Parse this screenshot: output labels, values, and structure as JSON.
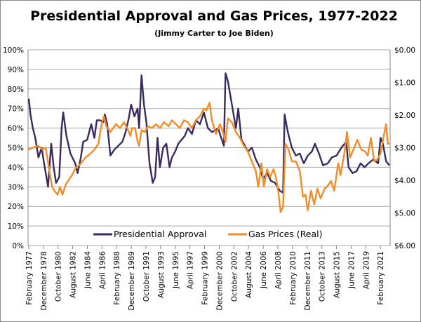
{
  "chart_data": {
    "type": "line",
    "title": "Presidential Approval and Gas Prices, 1977-2022",
    "subtitle": "(Jimmy Carter to Joe Biden)",
    "xlabel": "",
    "ylabel": "",
    "x_tick_labels": [
      "February 1977",
      "December 1978",
      "October 1980",
      "August 1982",
      "June 1984",
      "April 1986",
      "February 1988",
      "December 1989",
      "October 1991",
      "August 1993",
      "June 1995",
      "April 1997",
      "February 1999",
      "December 2000",
      "October 2002",
      "August 2004",
      "June 2006",
      "April 2008",
      "February 2010",
      "December 2011",
      "October 2013",
      "August 2015",
      "June 2017",
      "April 2019",
      "February 2021"
    ],
    "x_tick_years": [
      1977.08,
      1978.92,
      1980.75,
      1982.58,
      1984.42,
      1986.25,
      1988.08,
      1989.92,
      1991.75,
      1993.58,
      1995.42,
      1997.25,
      1999.08,
      2000.92,
      2002.75,
      2004.58,
      2006.42,
      2008.25,
      2010.08,
      2011.92,
      2013.75,
      2015.58,
      2017.42,
      2019.25,
      2021.08
    ],
    "xlim": [
      1977.0,
      2022.3
    ],
    "y_left": {
      "ticks": [
        "0%",
        "10%",
        "20%",
        "30%",
        "40%",
        "50%",
        "60%",
        "70%",
        "80%",
        "90%",
        "100%"
      ],
      "range": [
        0,
        100
      ]
    },
    "y_right": {
      "ticks": [
        "$0.00",
        "$1.00",
        "$2.00",
        "$3.00",
        "$4.00",
        "$5.00",
        "$6.00"
      ],
      "range": [
        0,
        6
      ],
      "inverted": true
    },
    "grid": true,
    "legend_position": "bottom-inside",
    "series": [
      {
        "name": "Presidential Approval",
        "axis": "left",
        "color": "#3b2a5e",
        "points": [
          [
            1977.1,
            75
          ],
          [
            1977.3,
            67
          ],
          [
            1977.6,
            60
          ],
          [
            1977.9,
            55
          ],
          [
            1978.3,
            45
          ],
          [
            1978.7,
            50
          ],
          [
            1979.0,
            42
          ],
          [
            1979.5,
            30
          ],
          [
            1979.9,
            52
          ],
          [
            1980.2,
            40
          ],
          [
            1980.5,
            32
          ],
          [
            1980.9,
            35
          ],
          [
            1981.2,
            60
          ],
          [
            1981.4,
            68
          ],
          [
            1981.8,
            56
          ],
          [
            1982.3,
            47
          ],
          [
            1982.9,
            42
          ],
          [
            1983.2,
            37
          ],
          [
            1983.6,
            45
          ],
          [
            1983.9,
            53
          ],
          [
            1984.4,
            54
          ],
          [
            1984.9,
            62
          ],
          [
            1985.3,
            55
          ],
          [
            1985.6,
            64
          ],
          [
            1986.0,
            64
          ],
          [
            1986.4,
            63
          ],
          [
            1986.6,
            67
          ],
          [
            1986.9,
            62
          ],
          [
            1987.3,
            46
          ],
          [
            1987.8,
            49
          ],
          [
            1988.3,
            51
          ],
          [
            1988.8,
            53
          ],
          [
            1989.2,
            58
          ],
          [
            1989.6,
            65
          ],
          [
            1989.9,
            72
          ],
          [
            1990.3,
            66
          ],
          [
            1990.7,
            70
          ],
          [
            1990.9,
            60
          ],
          [
            1991.2,
            87
          ],
          [
            1991.5,
            72
          ],
          [
            1991.8,
            63
          ],
          [
            1992.2,
            42
          ],
          [
            1992.6,
            32
          ],
          [
            1992.9,
            35
          ],
          [
            1993.2,
            55
          ],
          [
            1993.5,
            40
          ],
          [
            1993.9,
            50
          ],
          [
            1994.3,
            52
          ],
          [
            1994.7,
            40
          ],
          [
            1995.0,
            45
          ],
          [
            1995.4,
            48
          ],
          [
            1995.8,
            52
          ],
          [
            1996.2,
            54
          ],
          [
            1996.6,
            56
          ],
          [
            1997.0,
            60
          ],
          [
            1997.5,
            57
          ],
          [
            1998.0,
            64
          ],
          [
            1998.5,
            62
          ],
          [
            1999.0,
            68
          ],
          [
            1999.5,
            60
          ],
          [
            2000.0,
            58
          ],
          [
            2000.5,
            59
          ],
          [
            2000.8,
            60
          ],
          [
            2001.0,
            57
          ],
          [
            2001.5,
            51
          ],
          [
            2001.7,
            88
          ],
          [
            2002.0,
            84
          ],
          [
            2002.5,
            72
          ],
          [
            2003.0,
            60
          ],
          [
            2003.3,
            70
          ],
          [
            2003.7,
            54
          ],
          [
            2004.0,
            52
          ],
          [
            2004.5,
            48
          ],
          [
            2005.0,
            50
          ],
          [
            2005.5,
            44
          ],
          [
            2006.0,
            40
          ],
          [
            2006.4,
            34
          ],
          [
            2006.9,
            37
          ],
          [
            2007.4,
            33
          ],
          [
            2007.9,
            32
          ],
          [
            2008.5,
            28
          ],
          [
            2008.9,
            27
          ],
          [
            2009.1,
            67
          ],
          [
            2009.5,
            58
          ],
          [
            2010.0,
            50
          ],
          [
            2010.5,
            46
          ],
          [
            2011.0,
            47
          ],
          [
            2011.5,
            42
          ],
          [
            2012.0,
            46
          ],
          [
            2012.5,
            48
          ],
          [
            2012.9,
            52
          ],
          [
            2013.4,
            47
          ],
          [
            2013.9,
            41
          ],
          [
            2014.5,
            42
          ],
          [
            2015.0,
            45
          ],
          [
            2015.6,
            46
          ],
          [
            2016.2,
            50
          ],
          [
            2016.8,
            53
          ],
          [
            2017.1,
            40
          ],
          [
            2017.6,
            37
          ],
          [
            2018.1,
            38
          ],
          [
            2018.6,
            42
          ],
          [
            2019.1,
            40
          ],
          [
            2019.6,
            42
          ],
          [
            2020.2,
            44
          ],
          [
            2020.8,
            42
          ],
          [
            2021.1,
            55
          ],
          [
            2021.4,
            52
          ],
          [
            2021.8,
            43
          ],
          [
            2022.2,
            41
          ]
        ]
      },
      {
        "name": "Gas Prices (Real)",
        "axis": "right",
        "color": "#f28c28",
        "points": [
          [
            1977.0,
            3.06
          ],
          [
            1978.3,
            2.94
          ],
          [
            1978.8,
            3.06
          ],
          [
            1979.2,
            3.0
          ],
          [
            1979.6,
            3.6
          ],
          [
            1980.0,
            4.2
          ],
          [
            1980.3,
            4.32
          ],
          [
            1980.7,
            4.44
          ],
          [
            1981.0,
            4.2
          ],
          [
            1981.3,
            4.44
          ],
          [
            1981.7,
            4.14
          ],
          [
            1982.0,
            4.02
          ],
          [
            1982.5,
            3.84
          ],
          [
            1983.0,
            3.6
          ],
          [
            1983.4,
            3.54
          ],
          [
            1983.8,
            3.42
          ],
          [
            1984.2,
            3.3
          ],
          [
            1984.8,
            3.18
          ],
          [
            1985.3,
            3.06
          ],
          [
            1985.8,
            2.88
          ],
          [
            1986.2,
            2.28
          ],
          [
            1986.5,
            2.04
          ],
          [
            1986.8,
            2.34
          ],
          [
            1987.3,
            2.52
          ],
          [
            1988.0,
            2.28
          ],
          [
            1988.5,
            2.4
          ],
          [
            1989.0,
            2.22
          ],
          [
            1989.4,
            2.4
          ],
          [
            1989.8,
            2.64
          ],
          [
            1990.0,
            2.4
          ],
          [
            1990.4,
            2.4
          ],
          [
            1990.7,
            2.82
          ],
          [
            1990.9,
            2.94
          ],
          [
            1991.2,
            2.46
          ],
          [
            1991.6,
            2.52
          ],
          [
            1992.0,
            2.34
          ],
          [
            1992.5,
            2.4
          ],
          [
            1993.0,
            2.28
          ],
          [
            1993.5,
            2.4
          ],
          [
            1994.0,
            2.22
          ],
          [
            1994.6,
            2.34
          ],
          [
            1995.0,
            2.16
          ],
          [
            1995.5,
            2.28
          ],
          [
            1996.0,
            2.4
          ],
          [
            1996.5,
            2.16
          ],
          [
            1997.0,
            2.22
          ],
          [
            1997.5,
            2.4
          ],
          [
            1998.0,
            2.16
          ],
          [
            1998.5,
            2.04
          ],
          [
            1999.0,
            1.8
          ],
          [
            1999.3,
            1.86
          ],
          [
            1999.7,
            1.62
          ],
          [
            2000.0,
            2.16
          ],
          [
            2000.5,
            2.58
          ],
          [
            2001.0,
            2.28
          ],
          [
            2001.3,
            2.46
          ],
          [
            2001.7,
            2.82
          ],
          [
            2002.0,
            2.1
          ],
          [
            2002.5,
            2.22
          ],
          [
            2003.0,
            2.52
          ],
          [
            2003.5,
            2.7
          ],
          [
            2004.0,
            2.94
          ],
          [
            2004.5,
            3.12
          ],
          [
            2005.0,
            3.42
          ],
          [
            2005.5,
            3.72
          ],
          [
            2005.8,
            4.2
          ],
          [
            2006.2,
            3.48
          ],
          [
            2006.5,
            4.2
          ],
          [
            2006.9,
            3.66
          ],
          [
            2007.3,
            3.9
          ],
          [
            2007.7,
            3.66
          ],
          [
            2008.0,
            3.9
          ],
          [
            2008.3,
            4.32
          ],
          [
            2008.6,
            4.98
          ],
          [
            2008.9,
            4.8
          ],
          [
            2009.2,
            2.88
          ],
          [
            2009.6,
            3.06
          ],
          [
            2010.0,
            3.42
          ],
          [
            2010.5,
            3.42
          ],
          [
            2011.0,
            3.72
          ],
          [
            2011.4,
            4.5
          ],
          [
            2011.7,
            4.44
          ],
          [
            2012.0,
            4.92
          ],
          [
            2012.4,
            4.32
          ],
          [
            2012.8,
            4.74
          ],
          [
            2013.2,
            4.26
          ],
          [
            2013.6,
            4.56
          ],
          [
            2014.1,
            4.26
          ],
          [
            2014.6,
            4.14
          ],
          [
            2014.9,
            4.02
          ],
          [
            2015.3,
            4.32
          ],
          [
            2015.8,
            3.48
          ],
          [
            2016.1,
            3.84
          ],
          [
            2016.6,
            3.12
          ],
          [
            2016.9,
            2.52
          ],
          [
            2017.3,
            3.3
          ],
          [
            2017.7,
            3.06
          ],
          [
            2018.2,
            2.76
          ],
          [
            2018.7,
            3.06
          ],
          [
            2019.2,
            3.12
          ],
          [
            2019.5,
            3.24
          ],
          [
            2019.9,
            2.7
          ],
          [
            2020.3,
            3.42
          ],
          [
            2020.7,
            3.36
          ],
          [
            2021.1,
            3.18
          ],
          [
            2021.5,
            2.64
          ],
          [
            2021.8,
            2.28
          ],
          [
            2022.0,
            2.88
          ],
          [
            2022.2,
            2.88
          ]
        ]
      }
    ]
  }
}
